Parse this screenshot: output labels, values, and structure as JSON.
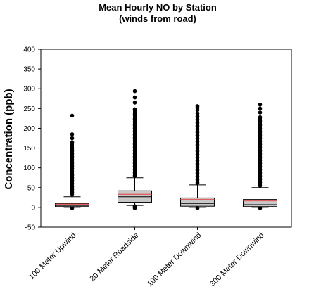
{
  "chart_data": {
    "type": "box",
    "title": "Mean Hourly NO by Station",
    "subtitle": "(winds from road)",
    "xlabel": "",
    "ylabel": "Concentration (ppb)",
    "ylim": [
      -50,
      400
    ],
    "yticks": [
      -50,
      0,
      50,
      100,
      150,
      200,
      250,
      300,
      350,
      400
    ],
    "grid": false,
    "categories": [
      "100 Meter Upwind",
      "20 Meter Roadside",
      "100 Meter Downwind",
      "300 Meter Downwind"
    ],
    "boxes": [
      {
        "name": "100 Meter Upwind",
        "whisker_low": 0,
        "q1": 2,
        "median": 5,
        "mean": 8,
        "q3": 10,
        "whisker_high": 27,
        "outliers": [
          -2,
          32,
          38,
          45,
          52,
          60,
          68,
          75,
          82,
          90,
          98,
          105,
          112,
          120,
          128,
          135,
          143,
          150,
          165,
          175,
          185,
          232
        ]
      },
      {
        "name": "20 Meter Roadside",
        "whisker_low": 5,
        "q1": 13,
        "median": 27,
        "mean": 33,
        "q3": 42,
        "whisker_high": 75,
        "outliers": [
          -2,
          1,
          3,
          80,
          88,
          96,
          104,
          112,
          120,
          128,
          136,
          144,
          152,
          160,
          168,
          176,
          184,
          192,
          200,
          208,
          216,
          224,
          235,
          248,
          265,
          278,
          294
        ]
      },
      {
        "name": "100 Meter Downwind",
        "whisker_low": 0,
        "q1": 3,
        "median": 10,
        "mean": 20,
        "q3": 24,
        "whisker_high": 57,
        "outliers": [
          -2,
          62,
          70,
          78,
          86,
          94,
          102,
          110,
          118,
          126,
          134,
          142,
          150,
          158,
          166,
          174,
          182,
          190,
          198,
          206,
          214,
          222,
          230,
          238,
          246,
          252,
          256
        ]
      },
      {
        "name": "300 Meter Downwind",
        "whisker_low": 0,
        "q1": 2,
        "median": 7,
        "mean": 17,
        "q3": 20,
        "whisker_high": 50,
        "outliers": [
          -2,
          55,
          63,
          71,
          79,
          87,
          95,
          103,
          111,
          119,
          127,
          135,
          143,
          151,
          159,
          167,
          175,
          183,
          191,
          199,
          208,
          218,
          228,
          240,
          250,
          260
        ]
      }
    ],
    "colors": {
      "box_fill": "#c8c8c8",
      "median_line": "#000000",
      "mean_line": "#e06060",
      "outlier": "#000000"
    }
  }
}
